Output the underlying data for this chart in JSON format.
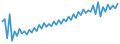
{
  "values": [
    55,
    60,
    20,
    70,
    15,
    35,
    25,
    40,
    30,
    35,
    28,
    38,
    32,
    42,
    35,
    48,
    40,
    52,
    44,
    50,
    45,
    55,
    48,
    58,
    50,
    60,
    55,
    65,
    58,
    70,
    62,
    75,
    68,
    80,
    72,
    78,
    75,
    88,
    70,
    95,
    65,
    85,
    75,
    90,
    80,
    88,
    82,
    92
  ],
  "line_color": "#3a9ad9",
  "line_width": 1.2,
  "background_color": "#ffffff"
}
